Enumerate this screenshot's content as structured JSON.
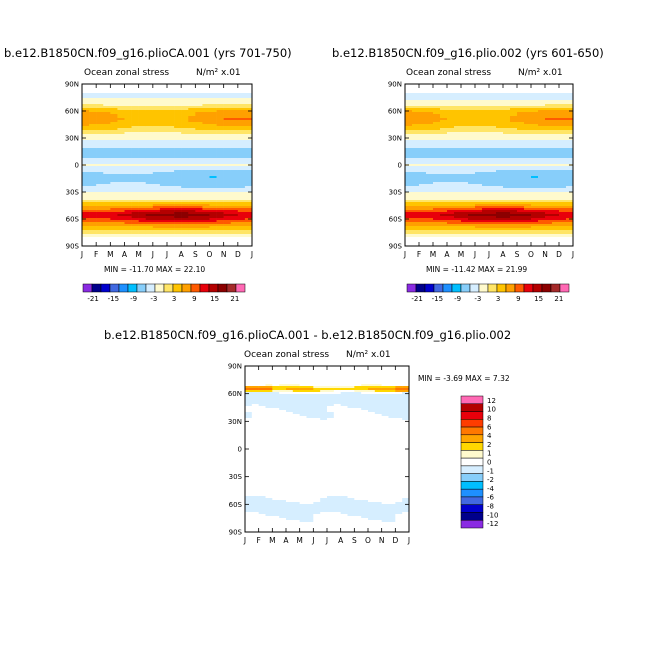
{
  "chart_data": [
    {
      "type": "heatmap",
      "title": "b.e12.B1850CN.f09_g16.plioCA.001 (yrs 701-750)",
      "field_label": "Ocean zonal stress",
      "units_label": "N/m² x.01",
      "y_ticks": [
        "90N",
        "60N",
        "30N",
        "0",
        "30S",
        "60S",
        "90S"
      ],
      "x_ticks": [
        "J",
        "F",
        "M",
        "A",
        "M",
        "J",
        "J",
        "A",
        "S",
        "O",
        "N",
        "D",
        "J"
      ],
      "min_max_text": "MIN = -11.70 MAX =  22.10",
      "colorbar_labels": [
        "-21",
        "-15",
        "-9",
        "-3",
        "3",
        "9",
        "15",
        "21"
      ],
      "colorbar_colors": [
        "#8a2be2",
        "#00008b",
        "#0000cd",
        "#4169e1",
        "#1e90ff",
        "#00bfff",
        "#87cefa",
        "#d6eeff",
        "#fffacd",
        "#ffe566",
        "#ffc400",
        "#ffa000",
        "#ff5a00",
        "#e8000b",
        "#b40000",
        "#8b0000",
        "#a52a2a",
        "#ff69b4"
      ],
      "zonal_profile": [
        {
          "lat": -78,
          "value": 0
        },
        {
          "lat": -68,
          "value": 6
        },
        {
          "lat": -60,
          "value": 14
        },
        {
          "lat": -55,
          "value": 17
        },
        {
          "lat": -50,
          "value": 12
        },
        {
          "lat": -44,
          "value": 5
        },
        {
          "lat": -38,
          "value": 1
        },
        {
          "lat": -30,
          "value": -1
        },
        {
          "lat": -20,
          "value": -4
        },
        {
          "lat": -12,
          "value": -5
        },
        {
          "lat": -5,
          "value": -2
        },
        {
          "lat": 0,
          "value": -1
        },
        {
          "lat": 5,
          "value": -2
        },
        {
          "lat": 12,
          "value": -5
        },
        {
          "lat": 20,
          "value": -3
        },
        {
          "lat": 28,
          "value": -1
        },
        {
          "lat": 35,
          "value": 1
        },
        {
          "lat": 42,
          "value": 4
        },
        {
          "lat": 50,
          "value": 7
        },
        {
          "lat": 58,
          "value": 6
        },
        {
          "lat": 66,
          "value": 1
        },
        {
          "lat": 72,
          "value": 0
        },
        {
          "lat": 78,
          "value": -2
        },
        {
          "lat": 85,
          "value": 0
        }
      ]
    },
    {
      "type": "heatmap",
      "title": "b.e12.B1850CN.f09_g16.plio.002 (yrs 601-650)",
      "field_label": "Ocean zonal stress",
      "units_label": "N/m² x.01",
      "y_ticks": [
        "90N",
        "60N",
        "30N",
        "0",
        "30S",
        "60S",
        "90S"
      ],
      "x_ticks": [
        "J",
        "F",
        "M",
        "A",
        "M",
        "J",
        "J",
        "A",
        "S",
        "O",
        "N",
        "D",
        "J"
      ],
      "min_max_text": "MIN = -11.42 MAX =  21.99",
      "colorbar_labels": [
        "-21",
        "-15",
        "-9",
        "-3",
        "3",
        "9",
        "15",
        "21"
      ],
      "colorbar_colors": [
        "#8a2be2",
        "#00008b",
        "#0000cd",
        "#4169e1",
        "#1e90ff",
        "#00bfff",
        "#87cefa",
        "#d6eeff",
        "#fffacd",
        "#ffe566",
        "#ffc400",
        "#ffa000",
        "#ff5a00",
        "#e8000b",
        "#b40000",
        "#8b0000",
        "#a52a2a",
        "#ff69b4"
      ],
      "zonal_profile": [
        {
          "lat": -78,
          "value": 0
        },
        {
          "lat": -68,
          "value": 6
        },
        {
          "lat": -60,
          "value": 14
        },
        {
          "lat": -55,
          "value": 17
        },
        {
          "lat": -50,
          "value": 12
        },
        {
          "lat": -44,
          "value": 5
        },
        {
          "lat": -38,
          "value": 1
        },
        {
          "lat": -30,
          "value": -1
        },
        {
          "lat": -20,
          "value": -4
        },
        {
          "lat": -12,
          "value": -5
        },
        {
          "lat": -5,
          "value": -2
        },
        {
          "lat": 0,
          "value": -1
        },
        {
          "lat": 5,
          "value": -2
        },
        {
          "lat": 12,
          "value": -5
        },
        {
          "lat": 20,
          "value": -3
        },
        {
          "lat": 28,
          "value": -1
        },
        {
          "lat": 35,
          "value": 1
        },
        {
          "lat": 42,
          "value": 4
        },
        {
          "lat": 50,
          "value": 7
        },
        {
          "lat": 58,
          "value": 6
        },
        {
          "lat": 66,
          "value": 1
        },
        {
          "lat": 72,
          "value": -1
        },
        {
          "lat": 78,
          "value": -2
        },
        {
          "lat": 85,
          "value": 0
        }
      ]
    },
    {
      "type": "heatmap",
      "title": "b.e12.B1850CN.f09_g16.plioCA.001 - b.e12.B1850CN.f09_g16.plio.002",
      "field_label": "Ocean zonal stress",
      "units_label": "N/m² x.01",
      "y_ticks": [
        "90N",
        "60N",
        "30N",
        "0",
        "30S",
        "60S",
        "90S"
      ],
      "x_ticks": [
        "J",
        "F",
        "M",
        "A",
        "M",
        "J",
        "J",
        "A",
        "S",
        "O",
        "N",
        "D",
        "J"
      ],
      "min_max_text": "MIN =  -3.69 MAX =   7.32",
      "colorbar_labels": [
        "12",
        "10",
        "8",
        "6",
        "4",
        "2",
        "1",
        "0",
        "-1",
        "-2",
        "-4",
        "-6",
        "-8",
        "-10",
        "-12"
      ],
      "colorbar_colors": [
        "#ff69b4",
        "#b40000",
        "#e8000b",
        "#ff3c00",
        "#ff7800",
        "#ffa500",
        "#ffd700",
        "#fffacd",
        "#ffffff",
        "#d6eeff",
        "#87cefa",
        "#00bfff",
        "#1e90ff",
        "#4169e1",
        "#0000cd",
        "#00008b",
        "#8a2be2"
      ],
      "zonal_profile": [
        {
          "lat": -80,
          "value": 0
        },
        {
          "lat": -66,
          "value": -1
        },
        {
          "lat": -60,
          "value": -1
        },
        {
          "lat": -50,
          "value": 0
        },
        {
          "lat": -30,
          "value": 0
        },
        {
          "lat": 0,
          "value": 0
        },
        {
          "lat": 30,
          "value": 0
        },
        {
          "lat": 50,
          "value": -1
        },
        {
          "lat": 60,
          "value": -1
        },
        {
          "lat": 65,
          "value": 3
        },
        {
          "lat": 70,
          "value": 0
        },
        {
          "lat": 80,
          "value": 0
        }
      ]
    }
  ]
}
